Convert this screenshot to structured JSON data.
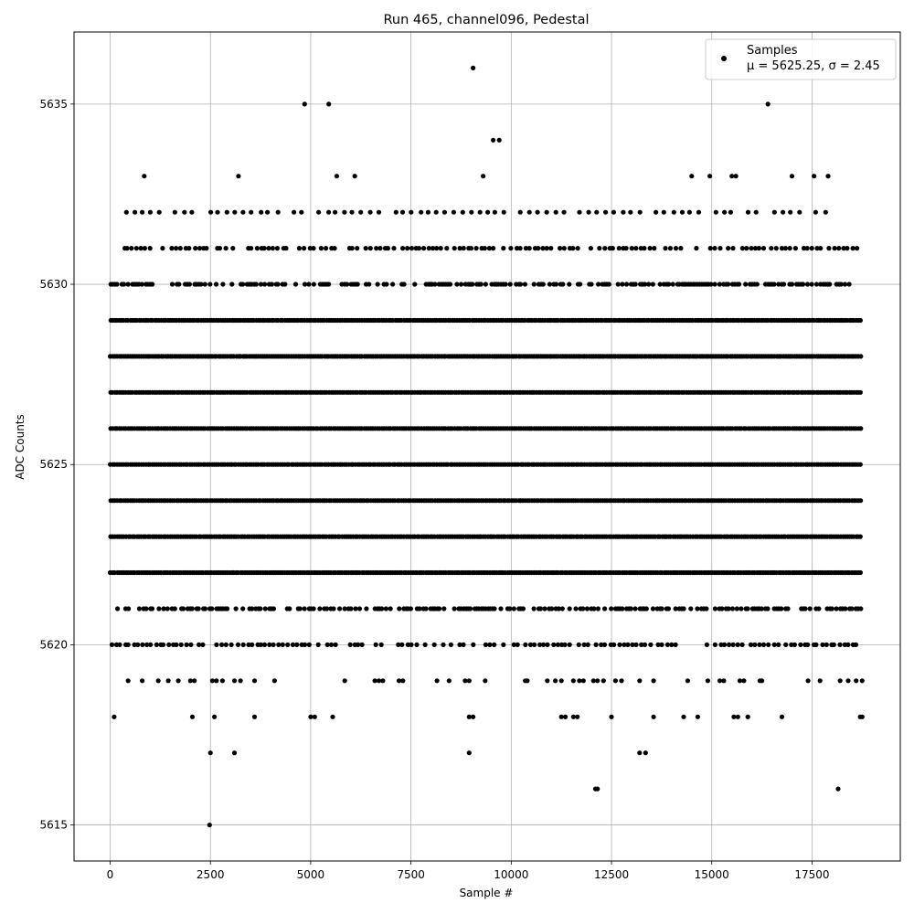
{
  "chart_data": {
    "type": "scatter",
    "title": "Run 465, channel096, Pedestal",
    "xlabel": "Sample #",
    "ylabel": "ADC Counts",
    "xlim": [
      -900,
      19700
    ],
    "ylim": [
      5614,
      5637
    ],
    "xticks": [
      0,
      2500,
      5000,
      7500,
      10000,
      12500,
      15000,
      17500
    ],
    "xtick_labels": [
      "0",
      "2500",
      "5000",
      "7500",
      "10000",
      "12500",
      "15000",
      "17500"
    ],
    "yticks": [
      5615,
      5620,
      5625,
      5630,
      5635
    ],
    "ytick_labels": [
      "5615",
      "5620",
      "5625",
      "5630",
      "5635"
    ],
    "grid": true,
    "legend_position": "top-right",
    "marker_color": "#000000",
    "series": [
      {
        "name": "Samples",
        "stats_label_mu": "μ = 5625.25, ",
        "stats_label_sigma": "σ = 2.45",
        "n_samples": 18750,
        "mean": 5625.25,
        "std": 2.45,
        "dense_levels": [
          5621,
          5622,
          5623,
          5624,
          5625,
          5626,
          5627,
          5628,
          5629,
          5630
        ],
        "sparse_levels": [
          {
            "y": 5620,
            "x_range": [
              0,
              18750
            ]
          },
          {
            "y": 5631,
            "x_range": [
              200,
              18600
            ]
          },
          {
            "y": 5632,
            "x_range": [
              350,
              18000
            ]
          }
        ],
        "outliers": [
          {
            "x": 100,
            "y": 5618
          },
          {
            "x": 2050,
            "y": 5618
          },
          {
            "x": 2600,
            "y": 5618
          },
          {
            "x": 3600,
            "y": 5618
          },
          {
            "x": 5000,
            "y": 5618
          },
          {
            "x": 5100,
            "y": 5618
          },
          {
            "x": 5550,
            "y": 5618
          },
          {
            "x": 8950,
            "y": 5618
          },
          {
            "x": 9050,
            "y": 5618
          },
          {
            "x": 11250,
            "y": 5618
          },
          {
            "x": 11350,
            "y": 5618
          },
          {
            "x": 11550,
            "y": 5618
          },
          {
            "x": 11650,
            "y": 5618
          },
          {
            "x": 12500,
            "y": 5618
          },
          {
            "x": 13550,
            "y": 5618
          },
          {
            "x": 14300,
            "y": 5618
          },
          {
            "x": 14650,
            "y": 5618
          },
          {
            "x": 15550,
            "y": 5618
          },
          {
            "x": 15650,
            "y": 5618
          },
          {
            "x": 15900,
            "y": 5618
          },
          {
            "x": 16750,
            "y": 5618
          },
          {
            "x": 18700,
            "y": 5618
          },
          {
            "x": 18750,
            "y": 5618
          },
          {
            "x": 450,
            "y": 5619
          },
          {
            "x": 800,
            "y": 5619
          },
          {
            "x": 1200,
            "y": 5619
          },
          {
            "x": 1450,
            "y": 5619
          },
          {
            "x": 1700,
            "y": 5619
          },
          {
            "x": 2000,
            "y": 5619
          },
          {
            "x": 2100,
            "y": 5619
          },
          {
            "x": 2550,
            "y": 5619
          },
          {
            "x": 2650,
            "y": 5619
          },
          {
            "x": 2800,
            "y": 5619
          },
          {
            "x": 3100,
            "y": 5619
          },
          {
            "x": 3250,
            "y": 5619
          },
          {
            "x": 3600,
            "y": 5619
          },
          {
            "x": 4100,
            "y": 5619
          },
          {
            "x": 5850,
            "y": 5619
          },
          {
            "x": 6600,
            "y": 5619
          },
          {
            "x": 6700,
            "y": 5619
          },
          {
            "x": 6800,
            "y": 5619
          },
          {
            "x": 7200,
            "y": 5619
          },
          {
            "x": 7300,
            "y": 5619
          },
          {
            "x": 8150,
            "y": 5619
          },
          {
            "x": 8450,
            "y": 5619
          },
          {
            "x": 8850,
            "y": 5619
          },
          {
            "x": 8950,
            "y": 5619
          },
          {
            "x": 9350,
            "y": 5619
          },
          {
            "x": 10350,
            "y": 5619
          },
          {
            "x": 10400,
            "y": 5619
          },
          {
            "x": 10900,
            "y": 5619
          },
          {
            "x": 11100,
            "y": 5619
          },
          {
            "x": 11250,
            "y": 5619
          },
          {
            "x": 11550,
            "y": 5619
          },
          {
            "x": 11700,
            "y": 5619
          },
          {
            "x": 11800,
            "y": 5619
          },
          {
            "x": 12050,
            "y": 5619
          },
          {
            "x": 12150,
            "y": 5619
          },
          {
            "x": 12300,
            "y": 5619
          },
          {
            "x": 12600,
            "y": 5619
          },
          {
            "x": 12750,
            "y": 5619
          },
          {
            "x": 13200,
            "y": 5619
          },
          {
            "x": 13550,
            "y": 5619
          },
          {
            "x": 14400,
            "y": 5619
          },
          {
            "x": 14900,
            "y": 5619
          },
          {
            "x": 15200,
            "y": 5619
          },
          {
            "x": 15300,
            "y": 5619
          },
          {
            "x": 15700,
            "y": 5619
          },
          {
            "x": 15800,
            "y": 5619
          },
          {
            "x": 16200,
            "y": 5619
          },
          {
            "x": 16250,
            "y": 5619
          },
          {
            "x": 17400,
            "y": 5619
          },
          {
            "x": 17700,
            "y": 5619
          },
          {
            "x": 18200,
            "y": 5619
          },
          {
            "x": 18400,
            "y": 5619
          },
          {
            "x": 18600,
            "y": 5619
          },
          {
            "x": 18750,
            "y": 5619
          },
          {
            "x": 2500,
            "y": 5617
          },
          {
            "x": 3100,
            "y": 5617
          },
          {
            "x": 8950,
            "y": 5617
          },
          {
            "x": 13200,
            "y": 5617
          },
          {
            "x": 13350,
            "y": 5617
          },
          {
            "x": 12100,
            "y": 5616
          },
          {
            "x": 12150,
            "y": 5616
          },
          {
            "x": 18150,
            "y": 5616
          },
          {
            "x": 2480,
            "y": 5615
          },
          {
            "x": 850,
            "y": 5633
          },
          {
            "x": 3200,
            "y": 5633
          },
          {
            "x": 5650,
            "y": 5633
          },
          {
            "x": 6100,
            "y": 5633
          },
          {
            "x": 9300,
            "y": 5633
          },
          {
            "x": 14500,
            "y": 5633
          },
          {
            "x": 14950,
            "y": 5633
          },
          {
            "x": 15500,
            "y": 5633
          },
          {
            "x": 15600,
            "y": 5633
          },
          {
            "x": 17000,
            "y": 5633
          },
          {
            "x": 17550,
            "y": 5633
          },
          {
            "x": 17900,
            "y": 5633
          },
          {
            "x": 9550,
            "y": 5634
          },
          {
            "x": 9700,
            "y": 5634
          },
          {
            "x": 4850,
            "y": 5635
          },
          {
            "x": 5450,
            "y": 5635
          },
          {
            "x": 16400,
            "y": 5635
          },
          {
            "x": 9050,
            "y": 5636
          }
        ]
      }
    ]
  }
}
